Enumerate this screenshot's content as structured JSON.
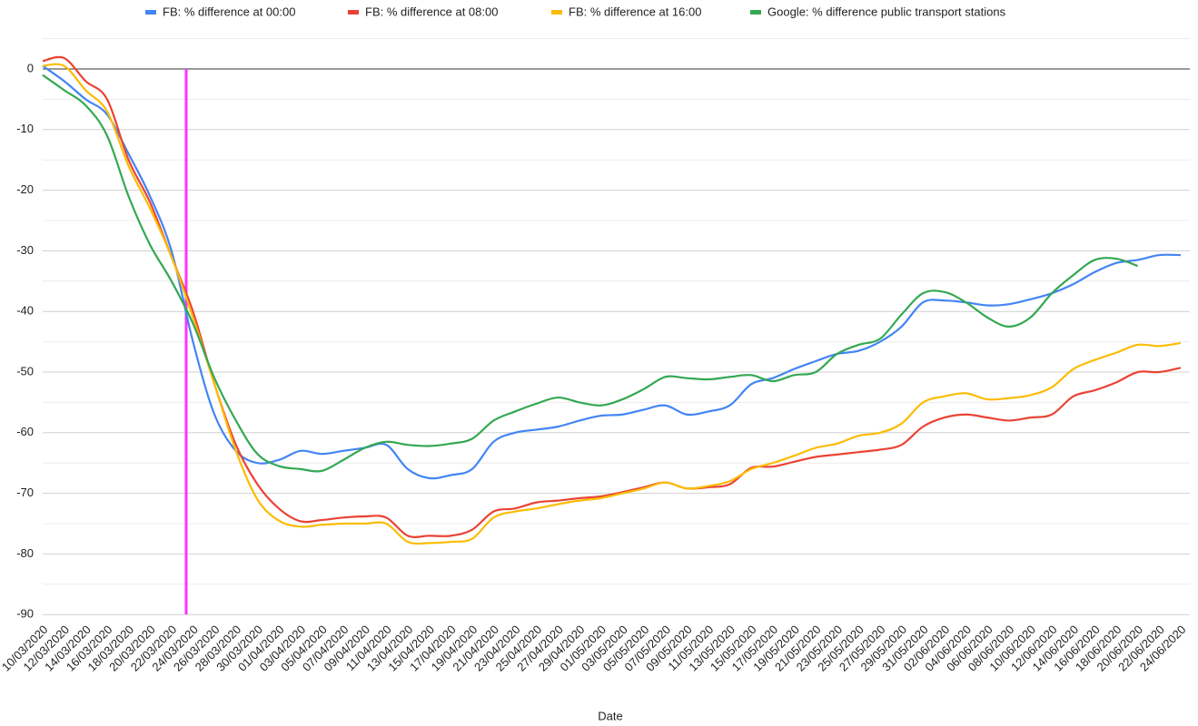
{
  "chart_data": {
    "type": "line",
    "x_label": "Date",
    "categories": [
      "10/03/2020",
      "12/03/2020",
      "14/03/2020",
      "16/03/2020",
      "18/03/2020",
      "20/03/2020",
      "22/03/2020",
      "24/03/2020",
      "26/03/2020",
      "28/03/2020",
      "30/03/2020",
      "01/04/2020",
      "03/04/2020",
      "05/04/2020",
      "07/04/2020",
      "09/04/2020",
      "11/04/2020",
      "13/04/2020",
      "15/04/2020",
      "17/04/2020",
      "19/04/2020",
      "21/04/2020",
      "23/04/2020",
      "25/04/2020",
      "27/04/2020",
      "29/04/2020",
      "01/05/2020",
      "03/05/2020",
      "05/05/2020",
      "07/05/2020",
      "09/05/2020",
      "11/05/2020",
      "13/05/2020",
      "15/05/2020",
      "17/05/2020",
      "19/05/2020",
      "21/05/2020",
      "23/05/2020",
      "25/05/2020",
      "27/05/2020",
      "29/05/2020",
      "31/05/2020",
      "02/06/2020",
      "04/06/2020",
      "06/06/2020",
      "08/06/2020",
      "10/06/2020",
      "12/06/2020",
      "14/06/2020",
      "16/06/2020",
      "18/06/2020",
      "20/06/2020",
      "22/06/2020",
      "24/06/2020"
    ],
    "series": [
      {
        "name": "FB: % difference at 00:00",
        "color": "#4285f4",
        "values": [
          0.5,
          -2,
          -5,
          -7.5,
          -14,
          -21,
          -30,
          -45,
          -57,
          -63,
          -65,
          -64.5,
          -63,
          -63.5,
          -63,
          -62.5,
          -62,
          -66,
          -67.5,
          -67,
          -66,
          -61.5,
          -60,
          -59.5,
          -59,
          -58,
          -57.2,
          -57,
          -56.2,
          -55.5,
          -57,
          -56.5,
          -55.5,
          -52,
          -51,
          -49.5,
          -48.2,
          -47,
          -46.5,
          -45,
          -42.5,
          -38.5,
          -38.2,
          -38.5,
          -39,
          -38.8,
          -38,
          -37,
          -35.5,
          -33.5,
          -32,
          -31.5,
          -30.7,
          -30.7
        ]
      },
      {
        "name": "FB: % difference at 08:00",
        "color": "#ea4335",
        "values": [
          1.3,
          1.8,
          -2,
          -5,
          -15,
          -22,
          -31,
          -40,
          -52,
          -62,
          -68.5,
          -72.5,
          -74.6,
          -74.4,
          -74,
          -73.8,
          -74,
          -77,
          -77,
          -77,
          -76,
          -73,
          -72.5,
          -71.5,
          -71.2,
          -70.8,
          -70.5,
          -69.8,
          -69,
          -68.2,
          -69.2,
          -69,
          -68.5,
          -65.8,
          -65.6,
          -64.8,
          -64,
          -63.6,
          -63.2,
          -62.8,
          -62,
          -59,
          -57.5,
          -57,
          -57.5,
          -58,
          -57.5,
          -57,
          -54,
          -53,
          -51.7,
          -50,
          -50,
          -49.3
        ]
      },
      {
        "name": "FB: % difference at 16:00",
        "color": "#fbbc04",
        "values": [
          0.5,
          0.5,
          -3.5,
          -7,
          -16,
          -23,
          -31,
          -41,
          -52,
          -63,
          -71,
          -74.5,
          -75.5,
          -75.2,
          -75,
          -75,
          -75,
          -78,
          -78.2,
          -78,
          -77.5,
          -74,
          -73,
          -72.5,
          -71.8,
          -71.2,
          -70.8,
          -70,
          -69.2,
          -68.2,
          -69.2,
          -68.8,
          -68,
          -66,
          -65,
          -63.8,
          -62.5,
          -61.8,
          -60.5,
          -60,
          -58.5,
          -55,
          -54,
          -53.5,
          -54.5,
          -54.3,
          -53.8,
          -52.5,
          -49.5,
          -48,
          -46.8,
          -45.5,
          -45.7,
          -45.2
        ]
      },
      {
        "name": "Google: % difference public transport stations",
        "color": "#34a853",
        "values": [
          -1,
          -3.5,
          -6,
          -11,
          -21,
          -29,
          -35,
          -42,
          -51,
          -58,
          -63.5,
          -65.5,
          -66,
          -66.3,
          -64.5,
          -62.5,
          -61.5,
          -62,
          -62.2,
          -61.8,
          -61,
          -58,
          -56.5,
          -55.2,
          -54.2,
          -55,
          -55.5,
          -54.5,
          -52.8,
          -50.8,
          -51,
          -51.2,
          -50.8,
          -50.5,
          -51.5,
          -50.5,
          -50,
          -47,
          -45.5,
          -44.5,
          -40.5,
          -37,
          -36.8,
          -38.5,
          -41,
          -42.5,
          -41,
          -37,
          -34,
          -31.5,
          -31.3,
          -32.5,
          null,
          null
        ]
      }
    ],
    "ylim": [
      -90,
      5
    ],
    "yticks": [
      0,
      -10,
      -20,
      -30,
      -40,
      -50,
      -60,
      -70,
      -80,
      -90
    ],
    "minor_yticks": [
      5,
      -5,
      -15,
      -25,
      -35,
      -45,
      -55,
      -65,
      -75,
      -85
    ],
    "grid": true
  }
}
